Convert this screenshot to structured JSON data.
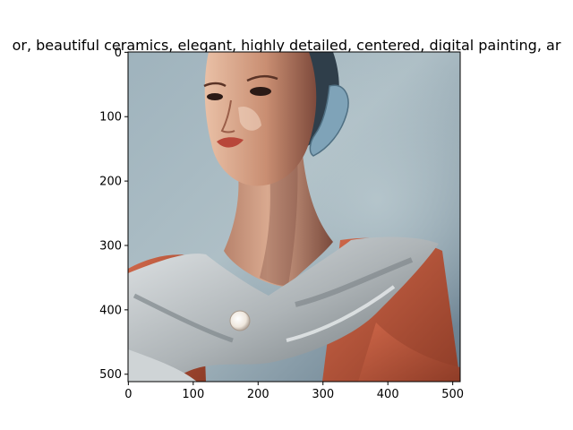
{
  "figure": {
    "title": "or,  beautiful ceramics, elegant, highly detailed, centered, digital painting, ar",
    "image_subject": "painted portrait of a woman with ceramic-like skin wearing a grey and orange draped garment with a round brooch",
    "colors": {
      "background": "#ffffff",
      "backdrop_light": "#a9bcc4",
      "backdrop_dark": "#5f7684",
      "skin_light": "#e6b89e",
      "skin_dark": "#8a5040",
      "lips": "#b8473a",
      "hair": "#2f3e4a",
      "drape_light": "#d3d8db",
      "drape_dark": "#6f777b",
      "garment_orange": "#c2583a",
      "brooch": "#f1ece4"
    }
  },
  "chart_data": {
    "type": "image",
    "title": "or,  beautiful ceramics, elegant, highly detailed, centered, digital painting, ar",
    "xlabel": "",
    "ylabel": "",
    "xlim": [
      -0.5,
      511.5
    ],
    "ylim": [
      511.5,
      -0.5
    ],
    "xticks": [
      0,
      100,
      200,
      300,
      400,
      500
    ],
    "yticks": [
      0,
      100,
      200,
      300,
      400,
      500
    ],
    "xtick_labels": [
      "0",
      "100",
      "200",
      "300",
      "400",
      "500"
    ],
    "ytick_labels": [
      "0",
      "100",
      "200",
      "300",
      "400",
      "500"
    ],
    "grid": false
  }
}
